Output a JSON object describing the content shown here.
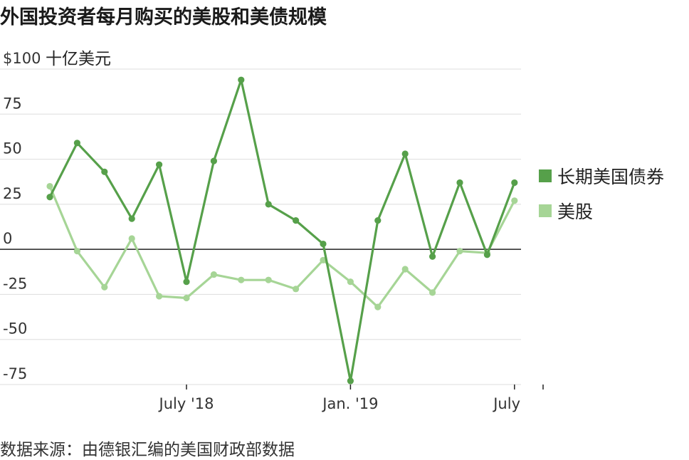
{
  "chart_data": {
    "type": "line",
    "title": "外国投资者每月购买的美股和美债规模",
    "source": "数据来源：由德银汇编的美国财政部数据",
    "y_unit": "十亿美元",
    "ylim": [
      -75,
      100
    ],
    "y_ticks": [
      {
        "value": 100,
        "label": "$100"
      },
      {
        "value": 75,
        "label": "75"
      },
      {
        "value": 50,
        "label": "50"
      },
      {
        "value": 25,
        "label": "25"
      },
      {
        "value": 0,
        "label": "0"
      },
      {
        "value": -25,
        "label": "-25"
      },
      {
        "value": -50,
        "label": "-50"
      },
      {
        "value": -75,
        "label": "-75"
      }
    ],
    "x_ticks": [
      {
        "index": 5,
        "label": "July '18"
      },
      {
        "index": 11,
        "label": "Jan. '19"
      },
      {
        "index": 17,
        "label": "July"
      }
    ],
    "grid": true,
    "legend_position": "right",
    "series": [
      {
        "name": "长期美国债券",
        "color": "#56a04a",
        "values": [
          29,
          59,
          43,
          17,
          47,
          -18,
          49,
          94,
          25,
          16,
          3,
          -73,
          16,
          53,
          -4,
          37,
          -3,
          37
        ]
      },
      {
        "name": "美股",
        "color": "#a6d596",
        "values": [
          35,
          -1,
          -21,
          6,
          -26,
          -27,
          -14,
          -17,
          -17,
          -22,
          -6,
          -18,
          -32,
          -11,
          -24,
          -1,
          -2,
          27
        ]
      }
    ]
  }
}
